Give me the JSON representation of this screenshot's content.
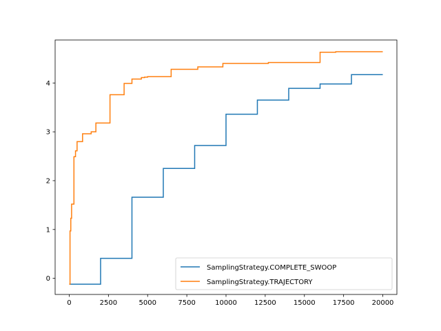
{
  "chart_data": {
    "type": "line",
    "title": "",
    "xlabel": "",
    "ylabel": "",
    "xlim": [
      -900,
      20900
    ],
    "ylim": [
      -0.33,
      4.88
    ],
    "xticks": [
      0,
      2500,
      5000,
      7500,
      10000,
      12500,
      15000,
      17500,
      20000
    ],
    "xtick_labels": [
      "0",
      "2500",
      "5000",
      "7500",
      "10000",
      "12500",
      "15000",
      "17500",
      "20000"
    ],
    "yticks": [
      0,
      1,
      2,
      3,
      4
    ],
    "ytick_labels": [
      "0",
      "1",
      "2",
      "3",
      "4"
    ],
    "grid": false,
    "legend_position": "lower-right",
    "series": [
      {
        "name": "SamplingStrategy.COMPLETE_SWOOP",
        "color": "#1f77b4",
        "step": "post",
        "x": [
          0,
          2000,
          4000,
          6000,
          8000,
          10000,
          12000,
          14000,
          16000,
          18000,
          20000
        ],
        "y": [
          -0.12,
          0.41,
          1.66,
          2.25,
          2.72,
          3.36,
          3.65,
          3.89,
          3.98,
          4.17,
          4.17
        ]
      },
      {
        "name": "SamplingStrategy.TRAJECTORY",
        "color": "#ff7f0e",
        "step": "post",
        "x": [
          0,
          50,
          100,
          150,
          300,
          400,
          500,
          600,
          850,
          1000,
          1400,
          1700,
          2600,
          3500,
          4000,
          4600,
          4800,
          5000,
          6500,
          8200,
          9600,
          9800,
          12700,
          16000,
          17000,
          20000
        ],
        "y": [
          -0.12,
          0.97,
          1.23,
          1.52,
          2.49,
          2.61,
          2.8,
          2.8,
          2.96,
          2.96,
          3.0,
          3.18,
          3.76,
          3.99,
          4.08,
          4.11,
          4.12,
          4.13,
          4.28,
          4.33,
          4.33,
          4.4,
          4.42,
          4.63,
          4.64,
          4.64
        ]
      }
    ]
  }
}
